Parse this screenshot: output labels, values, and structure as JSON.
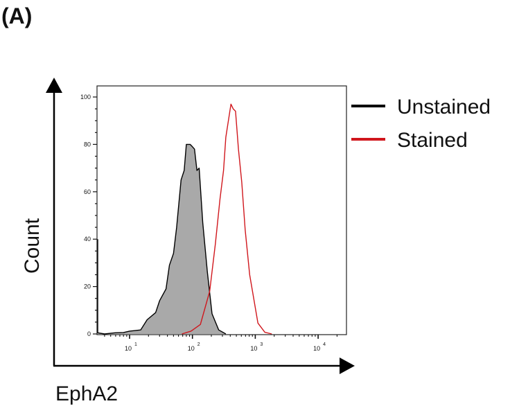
{
  "panel_label": "(A)",
  "chart_data": {
    "type": "line",
    "title": "",
    "xlabel": "EphA2",
    "ylabel": "Count",
    "x_scale": "log",
    "xlim": [
      3,
      27000
    ],
    "ylim": [
      0,
      100
    ],
    "y_ticks": [
      "0",
      "20",
      "40",
      "60",
      "80",
      "100"
    ],
    "x_ticks": [
      {
        "base": "10",
        "exp": "1",
        "value": 10
      },
      {
        "base": "10",
        "exp": "2",
        "value": 100
      },
      {
        "base": "10",
        "exp": "3",
        "value": 1000
      },
      {
        "base": "10",
        "exp": "4",
        "value": 10000
      }
    ],
    "grid": false,
    "legend_position": "right",
    "series": [
      {
        "name": "Unstained",
        "color": "#000000",
        "fill": "#a9a9a9",
        "points": [
          [
            3,
            40
          ],
          [
            3.1,
            0.5
          ],
          [
            4,
            0
          ],
          [
            5.9,
            0.5
          ],
          [
            8,
            0.6
          ],
          [
            10,
            1.2
          ],
          [
            12,
            1.4
          ],
          [
            15,
            1.7
          ],
          [
            19,
            6
          ],
          [
            26,
            9
          ],
          [
            30,
            14
          ],
          [
            38,
            19
          ],
          [
            43,
            29
          ],
          [
            50,
            34
          ],
          [
            56,
            45
          ],
          [
            66,
            65
          ],
          [
            74,
            69
          ],
          [
            80,
            80
          ],
          [
            92,
            80
          ],
          [
            100,
            79
          ],
          [
            108,
            78
          ],
          [
            118,
            69
          ],
          [
            128,
            70
          ],
          [
            146,
            47
          ],
          [
            173,
            26
          ],
          [
            205,
            8.5
          ],
          [
            262,
            1.7
          ],
          [
            340,
            0
          ]
        ]
      },
      {
        "name": "Stained",
        "color": "#d0161c",
        "points": [
          [
            68,
            0
          ],
          [
            95,
            1.2
          ],
          [
            134,
            4
          ],
          [
            188,
            18
          ],
          [
            232,
            38
          ],
          [
            275,
            57
          ],
          [
            313,
            69
          ],
          [
            340,
            83
          ],
          [
            410,
            97
          ],
          [
            445,
            95
          ],
          [
            485,
            94
          ],
          [
            540,
            78
          ],
          [
            610,
            64
          ],
          [
            690,
            44
          ],
          [
            815,
            25
          ],
          [
            1100,
            4.6
          ],
          [
            1420,
            0.7
          ],
          [
            1830,
            0
          ]
        ]
      }
    ]
  }
}
